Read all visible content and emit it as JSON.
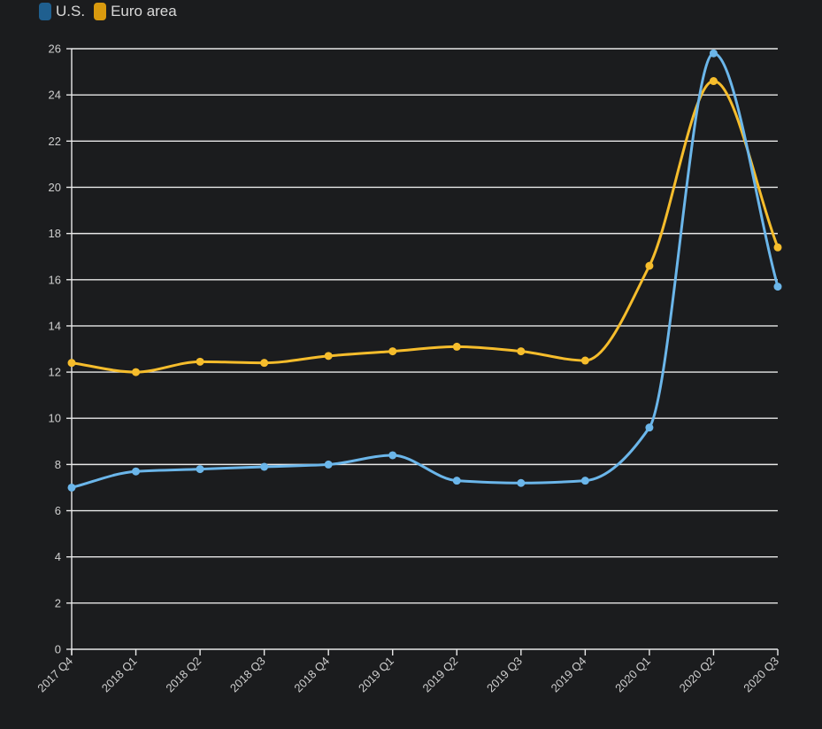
{
  "chart_data": {
    "type": "line",
    "title": "",
    "xlabel": "",
    "ylabel": "",
    "categories": [
      "2017 Q4",
      "2018 Q1",
      "2018 Q2",
      "2018 Q3",
      "2018 Q4",
      "2019 Q1",
      "2019 Q2",
      "2019 Q3",
      "2019 Q4",
      "2020 Q1",
      "2020 Q2",
      "2020 Q3"
    ],
    "ylim": [
      0,
      26
    ],
    "yticks": [
      "0",
      "2",
      "4",
      "6",
      "8",
      "10",
      "12",
      "14",
      "16",
      "18",
      "20",
      "22",
      "24",
      "26"
    ],
    "grid": true,
    "legend_position": "top-left",
    "series": [
      {
        "name": "U.S.",
        "color": "#6bb6ea",
        "swatch_color": "#1f5f8f",
        "values": [
          7.0,
          7.7,
          7.8,
          7.9,
          8.0,
          8.4,
          7.3,
          7.2,
          7.3,
          9.6,
          25.8,
          15.7
        ]
      },
      {
        "name": "Euro area",
        "color": "#f6bd2c",
        "swatch_color": "#d99a0e",
        "values": [
          12.4,
          12.0,
          12.45,
          12.4,
          12.7,
          12.9,
          13.1,
          12.9,
          12.5,
          16.6,
          24.6,
          17.4
        ]
      }
    ]
  }
}
